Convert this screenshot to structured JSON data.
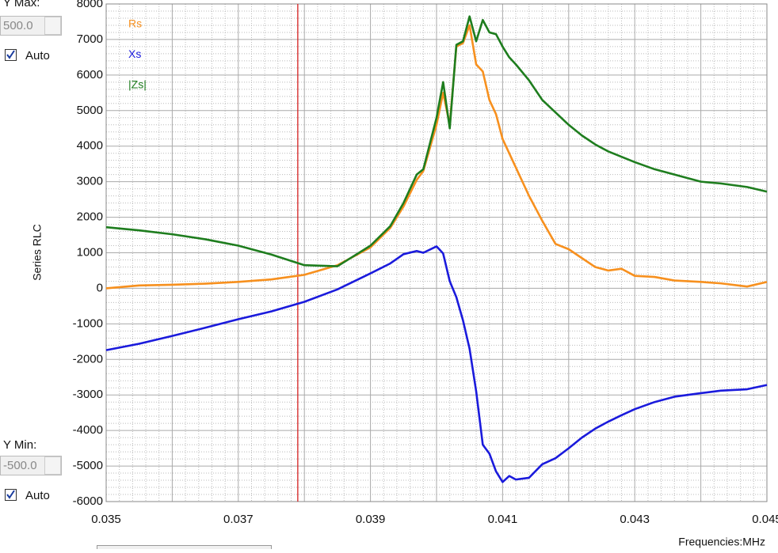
{
  "controls": [
    {
      "label": "Y Max:",
      "value": "500.0",
      "checkbox": "Auto"
    },
    {
      "label": "Y Min:",
      "value": "-500.0",
      "checkbox": "Auto"
    }
  ],
  "chart_data": {
    "type": "line",
    "y_label": "Series RLC",
    "x_label": "Frequencies:MHz",
    "x": [
      0.035,
      0.0355,
      0.036,
      0.0365,
      0.037,
      0.0375,
      0.038,
      0.0385,
      0.039,
      0.0393,
      0.0395,
      0.0397,
      0.0398,
      0.04,
      0.0401,
      0.0402,
      0.0403,
      0.0404,
      0.0405,
      0.0406,
      0.0407,
      0.0408,
      0.0409,
      0.041,
      0.0411,
      0.0412,
      0.0414,
      0.0416,
      0.0418,
      0.042,
      0.0422,
      0.0424,
      0.0426,
      0.0428,
      0.043,
      0.0433,
      0.0436,
      0.044,
      0.0443,
      0.0447,
      0.045
    ],
    "series": [
      {
        "name": "Rs",
        "color": "#f7901e",
        "values": [
          0,
          80,
          100,
          130,
          180,
          250,
          380,
          650,
          1150,
          1700,
          2300,
          3050,
          3300,
          4600,
          5500,
          4600,
          6800,
          6900,
          7400,
          6300,
          6100,
          5300,
          4900,
          4200,
          3800,
          3400,
          2600,
          1900,
          1250,
          1100,
          850,
          600,
          500,
          550,
          350,
          320,
          220,
          180,
          140,
          50,
          180
        ]
      },
      {
        "name": "Xs",
        "color": "#1a1adc",
        "values": [
          -1740,
          -1560,
          -1340,
          -1110,
          -870,
          -650,
          -380,
          -30,
          420,
          700,
          960,
          1050,
          1000,
          1180,
          980,
          200,
          -250,
          -900,
          -1700,
          -2900,
          -4400,
          -4650,
          -5150,
          -5450,
          -5280,
          -5380,
          -5330,
          -4950,
          -4780,
          -4500,
          -4200,
          -3950,
          -3750,
          -3570,
          -3400,
          -3200,
          -3050,
          -2950,
          -2880,
          -2840,
          -2720
        ]
      },
      {
        "name": "|Zs|",
        "color": "#1e7d1e",
        "values": [
          1720,
          1630,
          1520,
          1380,
          1200,
          950,
          650,
          620,
          1200,
          1750,
          2400,
          3200,
          3350,
          4800,
          5800,
          4500,
          6850,
          6950,
          7650,
          6950,
          7550,
          7200,
          7150,
          6800,
          6500,
          6300,
          5850,
          5300,
          4950,
          4600,
          4300,
          4050,
          3850,
          3700,
          3550,
          3350,
          3200,
          3000,
          2950,
          2850,
          2720
        ]
      }
    ],
    "xlim": [
      0.035,
      0.045
    ],
    "ylim": [
      -6000,
      8000
    ],
    "xticks": [
      0.035,
      0.037,
      0.039,
      0.041,
      0.043,
      0.045
    ],
    "yticks": [
      -6000,
      -5000,
      -4000,
      -3000,
      -2000,
      -1000,
      0,
      1000,
      2000,
      3000,
      4000,
      5000,
      6000,
      7000,
      8000
    ],
    "grid": true,
    "cursor_x": 0.0379,
    "cursor_color": "#d42020"
  }
}
